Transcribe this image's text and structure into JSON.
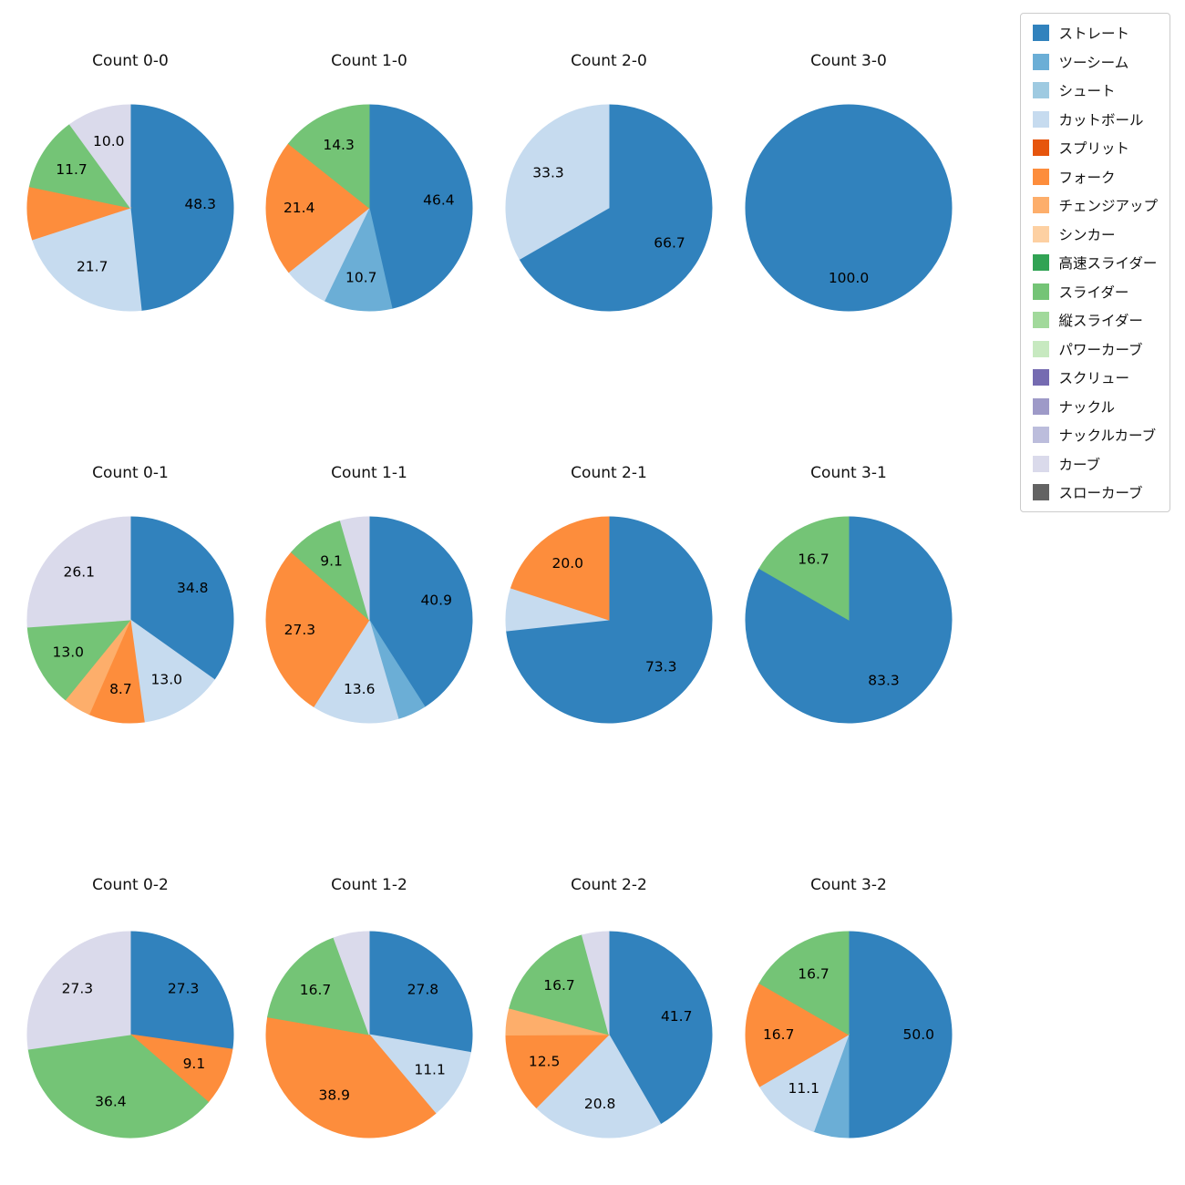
{
  "figure": {
    "background": "#ffffff",
    "label_text_color": "#000000"
  },
  "legend": {
    "items": [
      {
        "label": "ストレート",
        "color": "#3182bd"
      },
      {
        "label": "ツーシーム",
        "color": "#6baed6"
      },
      {
        "label": "シュート",
        "color": "#9ecae1"
      },
      {
        "label": "カットボール",
        "color": "#c6dbef"
      },
      {
        "label": "スプリット",
        "color": "#e6550d"
      },
      {
        "label": "フォーク",
        "color": "#fd8d3c"
      },
      {
        "label": "チェンジアップ",
        "color": "#fdae6b"
      },
      {
        "label": "シンカー",
        "color": "#fdd0a2"
      },
      {
        "label": "高速スライダー",
        "color": "#31a354"
      },
      {
        "label": "スライダー",
        "color": "#74c476"
      },
      {
        "label": "縦スライダー",
        "color": "#a1d99b"
      },
      {
        "label": "パワーカーブ",
        "color": "#c7e9c0"
      },
      {
        "label": "スクリュー",
        "color": "#756bb1"
      },
      {
        "label": "ナックル",
        "color": "#9e9ac8"
      },
      {
        "label": "ナックルカーブ",
        "color": "#bcbddc"
      },
      {
        "label": "カーブ",
        "color": "#dadaeb"
      },
      {
        "label": "スローカーブ",
        "color": "#636363"
      }
    ]
  },
  "chart_data": [
    {
      "type": "pie",
      "title": "Count 0-0",
      "start_angle_deg": 0,
      "direction": "clockwise",
      "slices": [
        {
          "pitch": "ストレート",
          "value": 48.3,
          "label_shown": true
        },
        {
          "pitch": "カットボール",
          "value": 21.7,
          "label_shown": true
        },
        {
          "pitch": "フォーク",
          "value": 8.3,
          "label_shown": false
        },
        {
          "pitch": "スライダー",
          "value": 11.7,
          "label_shown": true
        },
        {
          "pitch": "カーブ",
          "value": 10.0,
          "label_shown": true
        }
      ]
    },
    {
      "type": "pie",
      "title": "Count 1-0",
      "start_angle_deg": 0,
      "direction": "clockwise",
      "slices": [
        {
          "pitch": "ストレート",
          "value": 46.4,
          "label_shown": true
        },
        {
          "pitch": "ツーシーム",
          "value": 10.7,
          "label_shown": true
        },
        {
          "pitch": "カットボール",
          "value": 7.1,
          "label_shown": false
        },
        {
          "pitch": "フォーク",
          "value": 21.4,
          "label_shown": true
        },
        {
          "pitch": "スライダー",
          "value": 14.3,
          "label_shown": true
        }
      ]
    },
    {
      "type": "pie",
      "title": "Count 2-0",
      "start_angle_deg": 0,
      "direction": "clockwise",
      "slices": [
        {
          "pitch": "ストレート",
          "value": 66.7,
          "label_shown": true
        },
        {
          "pitch": "カットボール",
          "value": 33.3,
          "label_shown": true
        }
      ]
    },
    {
      "type": "pie",
      "title": "Count 3-0",
      "start_angle_deg": 0,
      "direction": "clockwise",
      "slices": [
        {
          "pitch": "ストレート",
          "value": 100.0,
          "label_shown": true
        }
      ]
    },
    {
      "type": "pie",
      "title": "Count 0-1",
      "start_angle_deg": 0,
      "direction": "clockwise",
      "slices": [
        {
          "pitch": "ストレート",
          "value": 34.8,
          "label_shown": true
        },
        {
          "pitch": "カットボール",
          "value": 13.0,
          "label_shown": true
        },
        {
          "pitch": "フォーク",
          "value": 8.7,
          "label_shown": true
        },
        {
          "pitch": "チェンジアップ",
          "value": 4.3,
          "label_shown": false
        },
        {
          "pitch": "スライダー",
          "value": 13.0,
          "label_shown": true
        },
        {
          "pitch": "カーブ",
          "value": 26.1,
          "label_shown": true
        }
      ]
    },
    {
      "type": "pie",
      "title": "Count 1-1",
      "start_angle_deg": 0,
      "direction": "clockwise",
      "slices": [
        {
          "pitch": "ストレート",
          "value": 40.9,
          "label_shown": true
        },
        {
          "pitch": "ツーシーム",
          "value": 4.5,
          "label_shown": false
        },
        {
          "pitch": "カットボール",
          "value": 13.6,
          "label_shown": true
        },
        {
          "pitch": "フォーク",
          "value": 27.3,
          "label_shown": true
        },
        {
          "pitch": "スライダー",
          "value": 9.1,
          "label_shown": true
        },
        {
          "pitch": "カーブ",
          "value": 4.5,
          "label_shown": false
        }
      ]
    },
    {
      "type": "pie",
      "title": "Count 2-1",
      "start_angle_deg": 0,
      "direction": "clockwise",
      "slices": [
        {
          "pitch": "ストレート",
          "value": 73.3,
          "label_shown": true
        },
        {
          "pitch": "カットボール",
          "value": 6.7,
          "label_shown": false
        },
        {
          "pitch": "フォーク",
          "value": 20.0,
          "label_shown": true
        }
      ]
    },
    {
      "type": "pie",
      "title": "Count 3-1",
      "start_angle_deg": 0,
      "direction": "clockwise",
      "slices": [
        {
          "pitch": "ストレート",
          "value": 83.3,
          "label_shown": true
        },
        {
          "pitch": "スライダー",
          "value": 16.7,
          "label_shown": true
        }
      ]
    },
    {
      "type": "pie",
      "title": "Count 0-2",
      "start_angle_deg": 0,
      "direction": "clockwise",
      "slices": [
        {
          "pitch": "ストレート",
          "value": 27.3,
          "label_shown": true
        },
        {
          "pitch": "フォーク",
          "value": 9.1,
          "label_shown": true
        },
        {
          "pitch": "スライダー",
          "value": 36.4,
          "label_shown": true
        },
        {
          "pitch": "カーブ",
          "value": 27.3,
          "label_shown": true
        }
      ]
    },
    {
      "type": "pie",
      "title": "Count 1-2",
      "start_angle_deg": 0,
      "direction": "clockwise",
      "slices": [
        {
          "pitch": "ストレート",
          "value": 27.8,
          "label_shown": true
        },
        {
          "pitch": "カットボール",
          "value": 11.1,
          "label_shown": true
        },
        {
          "pitch": "フォーク",
          "value": 38.9,
          "label_shown": true
        },
        {
          "pitch": "スライダー",
          "value": 16.7,
          "label_shown": true
        },
        {
          "pitch": "カーブ",
          "value": 5.6,
          "label_shown": false
        }
      ]
    },
    {
      "type": "pie",
      "title": "Count 2-2",
      "start_angle_deg": 0,
      "direction": "clockwise",
      "slices": [
        {
          "pitch": "ストレート",
          "value": 41.7,
          "label_shown": true
        },
        {
          "pitch": "カットボール",
          "value": 20.8,
          "label_shown": true
        },
        {
          "pitch": "フォーク",
          "value": 12.5,
          "label_shown": true
        },
        {
          "pitch": "チェンジアップ",
          "value": 4.2,
          "label_shown": false
        },
        {
          "pitch": "スライダー",
          "value": 16.7,
          "label_shown": true
        },
        {
          "pitch": "カーブ",
          "value": 4.2,
          "label_shown": false
        }
      ]
    },
    {
      "type": "pie",
      "title": "Count 3-2",
      "start_angle_deg": 0,
      "direction": "clockwise",
      "slices": [
        {
          "pitch": "ストレート",
          "value": 50.0,
          "label_shown": true
        },
        {
          "pitch": "ツーシーム",
          "value": 5.5,
          "label_shown": false
        },
        {
          "pitch": "カットボール",
          "value": 11.1,
          "label_shown": true
        },
        {
          "pitch": "フォーク",
          "value": 16.7,
          "label_shown": true
        },
        {
          "pitch": "スライダー",
          "value": 16.7,
          "label_shown": true
        }
      ]
    }
  ]
}
